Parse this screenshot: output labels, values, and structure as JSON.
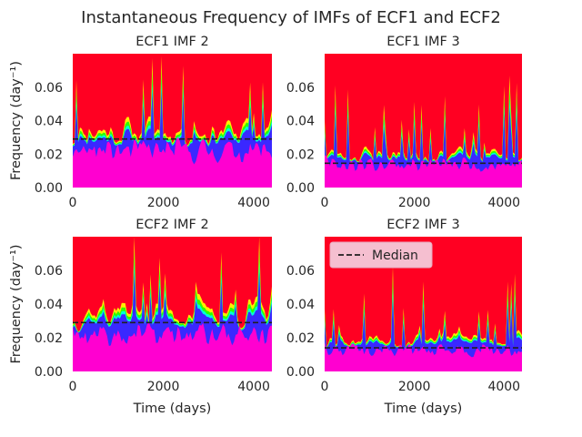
{
  "figure": {
    "title": "Instantaneous Frequency of IMFs of ECF1 and ECF2",
    "colors": {
      "background": "#ff0022",
      "low": "#ff00d0",
      "blue": "#3a28ff",
      "cyan": "#00ffd8",
      "green": "#2cff00",
      "yellow": "#ffee00",
      "median": "#1f1f1f",
      "legend_bg": "#f5bfd0"
    }
  },
  "chart_data": [
    {
      "type": "heatmap",
      "title": "ECF1 IMF 2",
      "ylabel": "Frequency (day⁻¹)",
      "xlabel": "",
      "xlim": [
        0,
        4400
      ],
      "ylim": [
        0,
        0.08
      ],
      "xticks": [
        0,
        2000,
        4000
      ],
      "yticks": [
        0.0,
        0.02,
        0.04,
        0.06
      ],
      "ytick_labels": [
        "0.00",
        "0.02",
        "0.04",
        "0.06"
      ],
      "median": 0.029,
      "low_band_top": 0.022,
      "peak_mean": 0.034,
      "seed": 11,
      "grid": false
    },
    {
      "type": "heatmap",
      "title": "ECF1 IMF 3",
      "ylabel": "",
      "xlabel": "",
      "xlim": [
        0,
        4400
      ],
      "ylim": [
        0,
        0.08
      ],
      "xticks": [
        0,
        2000,
        4000
      ],
      "yticks": [
        0.0,
        0.02,
        0.04,
        0.06
      ],
      "ytick_labels": [
        "0.00",
        "0.02",
        "0.04",
        "0.06"
      ],
      "median": 0.0145,
      "low_band_top": 0.014,
      "peak_mean": 0.02,
      "seed": 23,
      "grid": false
    },
    {
      "type": "heatmap",
      "title": "ECF2 IMF 2",
      "ylabel": "Frequency (day⁻¹)",
      "xlabel": "Time (days)",
      "xlim": [
        0,
        4400
      ],
      "ylim": [
        0,
        0.08
      ],
      "xticks": [
        0,
        2000,
        4000
      ],
      "yticks": [
        0.0,
        0.02,
        0.04,
        0.06
      ],
      "ytick_labels": [
        "0.00",
        "0.02",
        "0.04",
        "0.06"
      ],
      "median": 0.029,
      "low_band_top": 0.022,
      "peak_mean": 0.036,
      "seed": 37,
      "grid": false
    },
    {
      "type": "heatmap",
      "title": "ECF2 IMF 3",
      "ylabel": "",
      "xlabel": "Time (days)",
      "xlim": [
        0,
        4400
      ],
      "ylim": [
        0,
        0.08
      ],
      "xticks": [
        0,
        2000,
        4000
      ],
      "yticks": [
        0.0,
        0.02,
        0.04,
        0.06
      ],
      "ytick_labels": [
        "0.00",
        "0.02",
        "0.04",
        "0.06"
      ],
      "median": 0.014,
      "low_band_top": 0.013,
      "peak_mean": 0.02,
      "seed": 53,
      "grid": false,
      "legend": {
        "entries": [
          "Median"
        ],
        "placement": "upper-left"
      }
    }
  ]
}
